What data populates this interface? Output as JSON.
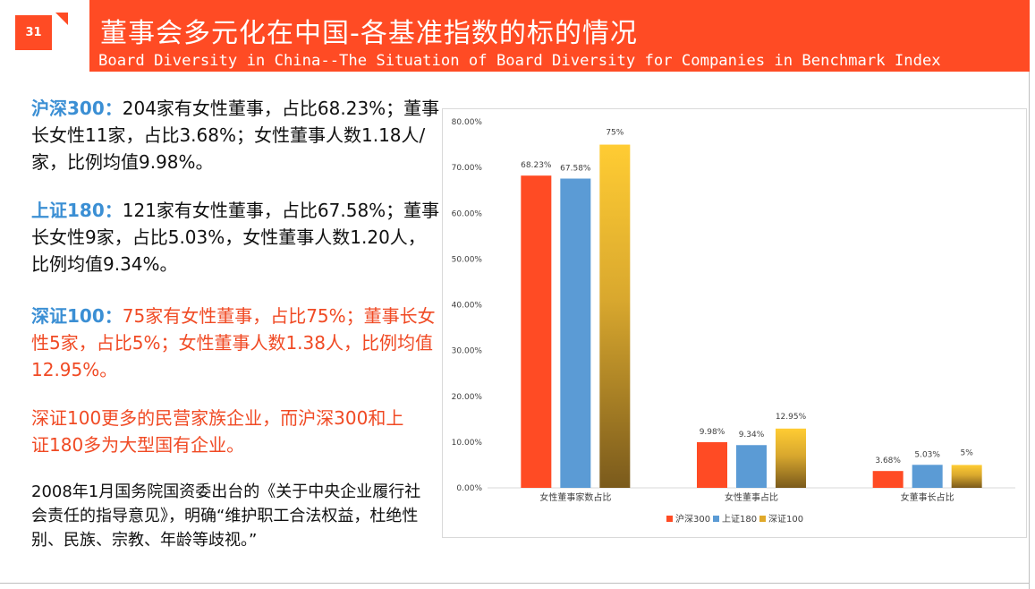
{
  "page": {
    "number": "31"
  },
  "header": {
    "title_cn": "董事会多元化在中国-各基准指数的标的情况",
    "title_en": "Board Diversity in China--The Situation of Board Diversity for Companies in Benchmark Index"
  },
  "blocks": [
    {
      "lead": "沪深300：",
      "body": "204家有女性董事，占比68.23%；董事长女性11家，占比3.68%；女性董事人数1.18人/家，比例均值9.98%。"
    },
    {
      "lead": "上证180：",
      "body": "121家有女性董事，占比67.58%；董事长女性9家，占比5.03%，女性董事人数1.20人，比例均值9.34%。"
    },
    {
      "lead": "深证100：",
      "body": "75家有女性董事，占比75%；董事长女性5家，占比5%；女性董事人数1.38人，比例均值12.95%。"
    }
  ],
  "note_red": "深证100更多的民营家族企业，而沪深300和上证180多为大型国有企业。",
  "note_policy": "2008年1月国务院国资委出台的《关于中央企业履行社会责任的指导意见》，明确“维护职工合法权益，杜绝性别、民族、宗教、年龄等歧视。”",
  "colors": {
    "accent": "#ff4b24",
    "lead_blue": "#3b8fd4",
    "red_text": "#f04a24"
  },
  "chart_data": {
    "type": "bar",
    "categories": [
      "女性董事家数占比",
      "女性董事占比",
      "女董事长占比"
    ],
    "series": [
      {
        "name": "沪深300",
        "values": [
          68.23,
          9.98,
          3.68
        ],
        "labels": [
          "68.23%",
          "9.98%",
          "3.68%"
        ],
        "color": "#ff4b24"
      },
      {
        "name": "上证180",
        "values": [
          67.58,
          9.34,
          5.03
        ],
        "labels": [
          "67.58%",
          "9.34%",
          "5.03%"
        ],
        "color": "#5b9bd5"
      },
      {
        "name": "深证100",
        "values": [
          75,
          12.95,
          5
        ],
        "labels": [
          "75%",
          "12.95%",
          "5%"
        ],
        "color": "#ffc000",
        "gradient": true
      }
    ],
    "ylim": [
      0,
      80
    ],
    "yticks": [
      "0.00%",
      "10.00%",
      "20.00%",
      "30.00%",
      "40.00%",
      "50.00%",
      "60.00%",
      "70.00%",
      "80.00%"
    ],
    "grid": false,
    "legend": "bottom"
  }
}
